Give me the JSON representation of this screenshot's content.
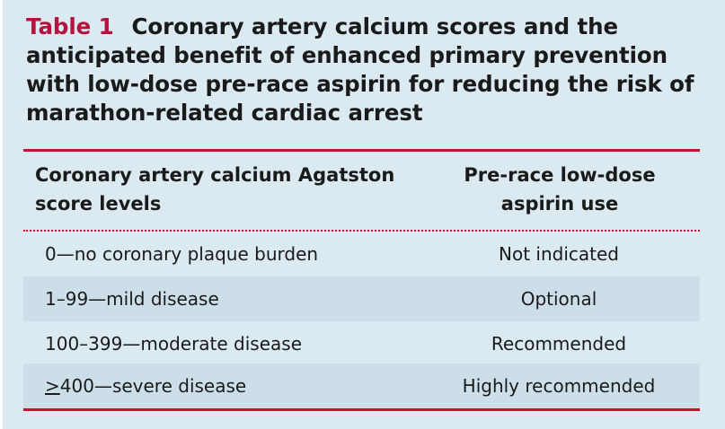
{
  "caption": {
    "label": "Table 1",
    "text": "Coronary artery calcium scores and the anticipated benefit of enhanced primary prevention with low-dose pre-race aspirin for reducing the risk of marathon-related cardiac arrest"
  },
  "table": {
    "headers": {
      "left": "Coronary artery calcium Agatston score levels",
      "right": "Pre-race low-dose aspirin use"
    },
    "rows": [
      {
        "score": "0—no coronary plaque burden",
        "aspirin": "Not indicated"
      },
      {
        "score": "1–99—mild disease",
        "aspirin": "Optional"
      },
      {
        "score": "100–399—moderate disease",
        "aspirin": "Recommended"
      },
      {
        "score": ">400—severe disease",
        "aspirin": "Highly recommended"
      }
    ]
  },
  "colors": {
    "accent_red": "#c8102e",
    "caption_label": "#b5123e",
    "background": "#dbe9f0",
    "row_shade": "#ccdfe9"
  }
}
